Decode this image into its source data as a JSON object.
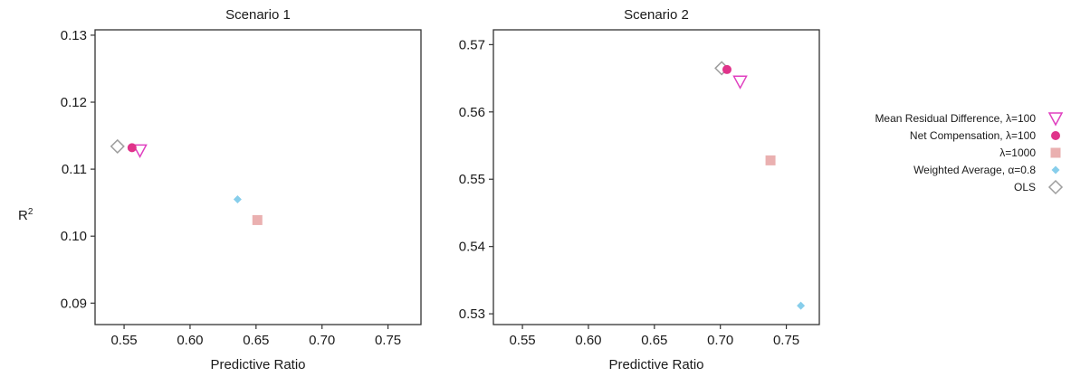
{
  "figure": {
    "shared_ylabel": "R",
    "shared_ylabel_sup": "2"
  },
  "legend": {
    "position": "right",
    "items": [
      {
        "label": "Mean Residual Difference, λ=100",
        "marker": "triangle-down-open",
        "color": "#e040c0"
      },
      {
        "label": "Net Compensation, λ=100",
        "marker": "circle-filled",
        "color": "#e0338a"
      },
      {
        "label": "λ=1000",
        "marker": "square-filled",
        "color": "#eab0b0"
      },
      {
        "label": "Weighted Average, α=0.8",
        "marker": "diamond-filled",
        "color": "#87ceeb"
      },
      {
        "label": "OLS",
        "marker": "diamond-open",
        "color": "#9e9e9e"
      }
    ]
  },
  "chart_data": [
    {
      "type": "scatter",
      "title": "Scenario 1",
      "xlabel": "Predictive Ratio",
      "ylabel": "",
      "xlim": [
        0.528,
        0.775
      ],
      "ylim": [
        0.0868,
        0.1308
      ],
      "xticks": [
        0.55,
        0.6,
        0.65,
        0.7,
        0.75
      ],
      "xtick_labels": [
        "0.55",
        "0.60",
        "0.65",
        "0.70",
        "0.75"
      ],
      "yticks": [
        0.09,
        0.1,
        0.11,
        0.12,
        0.13
      ],
      "ytick_labels": [
        "0.09",
        "0.10",
        "0.11",
        "0.12",
        "0.13"
      ],
      "grid": false,
      "series": [
        {
          "name": "Mean Residual Difference, λ=100",
          "x": 0.562,
          "y": 0.1128
        },
        {
          "name": "Net Compensation, λ=100",
          "x": 0.556,
          "y": 0.1132
        },
        {
          "name": "λ=1000",
          "x": 0.651,
          "y": 0.1024
        },
        {
          "name": "Weighted Average, α=0.8",
          "x": 0.636,
          "y": 0.1055
        },
        {
          "name": "OLS",
          "x": 0.545,
          "y": 0.1134
        }
      ]
    },
    {
      "type": "scatter",
      "title": "Scenario 2",
      "xlabel": "Predictive Ratio",
      "ylabel": "",
      "xlim": [
        0.528,
        0.775
      ],
      "ylim": [
        0.5284,
        0.5722
      ],
      "xticks": [
        0.55,
        0.6,
        0.65,
        0.7,
        0.75
      ],
      "xtick_labels": [
        "0.55",
        "0.60",
        "0.65",
        "0.70",
        "0.75"
      ],
      "yticks": [
        0.53,
        0.54,
        0.55,
        0.56,
        0.57
      ],
      "ytick_labels": [
        "0.53",
        "0.54",
        "0.55",
        "0.56",
        "0.57"
      ],
      "grid": false,
      "series": [
        {
          "name": "Mean Residual Difference, λ=100",
          "x": 0.715,
          "y": 0.5645
        },
        {
          "name": "Net Compensation, λ=100",
          "x": 0.705,
          "y": 0.5663
        },
        {
          "name": "λ=1000",
          "x": 0.738,
          "y": 0.5528
        },
        {
          "name": "Weighted Average, α=0.8",
          "x": 0.761,
          "y": 0.5312
        },
        {
          "name": "OLS",
          "x": 0.701,
          "y": 0.5665
        }
      ]
    }
  ]
}
